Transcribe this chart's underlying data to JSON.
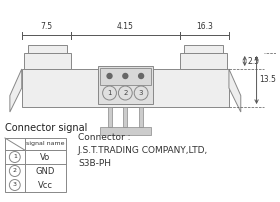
{
  "background_color": "#ffffff",
  "line_color": "#888888",
  "dark_line": "#555555",
  "dim_labels": [
    "7.5",
    "4.15",
    "16.3",
    "2.5",
    "13.5"
  ],
  "connector_title": "Connector signal",
  "table_header": "signal name",
  "pins": [
    {
      "num": "1",
      "name": "Vo"
    },
    {
      "num": "2",
      "name": "GND"
    },
    {
      "num": "3",
      "name": "Vcc"
    }
  ],
  "connector_text": [
    "Connector :",
    "J.S.T.TRADING COMPANY,LTD,",
    "S3B-PH"
  ],
  "body_fill": "#eeeeee",
  "connector_fill": "#e0e0e0"
}
